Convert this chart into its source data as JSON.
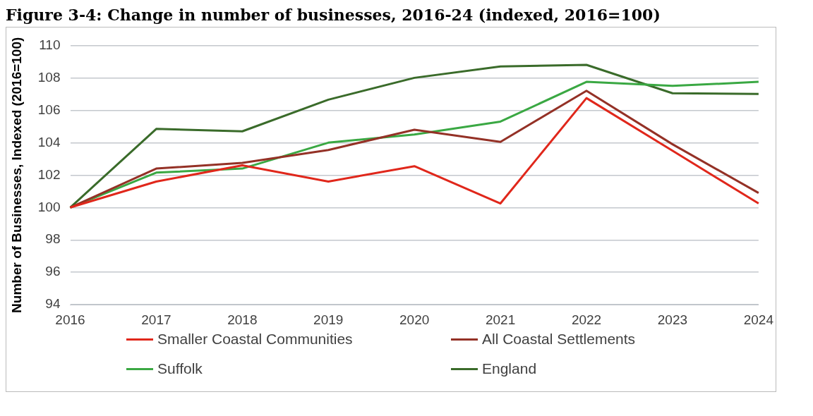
{
  "chart_data": {
    "type": "line",
    "title": "Figure 3-4: Change in number of businesses, 2016-24 (indexed, 2016=100)",
    "ylabel": "Number of Businesses, Indexed (2016=100)",
    "categories": [
      "2016",
      "2017",
      "2018",
      "2019",
      "2020",
      "2021",
      "2022",
      "2023",
      "2024"
    ],
    "series": [
      {
        "name": "Smaller Coastal Communities",
        "color": "#e0271b",
        "values": [
          100,
          101.6,
          102.6,
          101.6,
          102.55,
          100.25,
          106.75,
          103.5,
          100.25
        ]
      },
      {
        "name": "All Coastal Settlements",
        "color": "#943126",
        "values": [
          100,
          102.4,
          102.75,
          103.55,
          104.8,
          104.05,
          107.2,
          103.9,
          100.9
        ]
      },
      {
        "name": "Suffolk",
        "color": "#3aa843",
        "values": [
          100,
          102.15,
          102.4,
          104.0,
          104.5,
          105.3,
          107.75,
          107.5,
          107.75
        ]
      },
      {
        "name": "England",
        "color": "#3a6b2a",
        "values": [
          100,
          104.85,
          104.7,
          106.65,
          108.0,
          108.7,
          108.8,
          107.05,
          107.0
        ]
      }
    ],
    "ylim": [
      94,
      110
    ],
    "yticks": [
      94,
      96,
      98,
      100,
      102,
      104,
      106,
      108,
      110
    ],
    "grid": "y",
    "legend": "bottom",
    "marker": "none",
    "line_style": "solid"
  }
}
